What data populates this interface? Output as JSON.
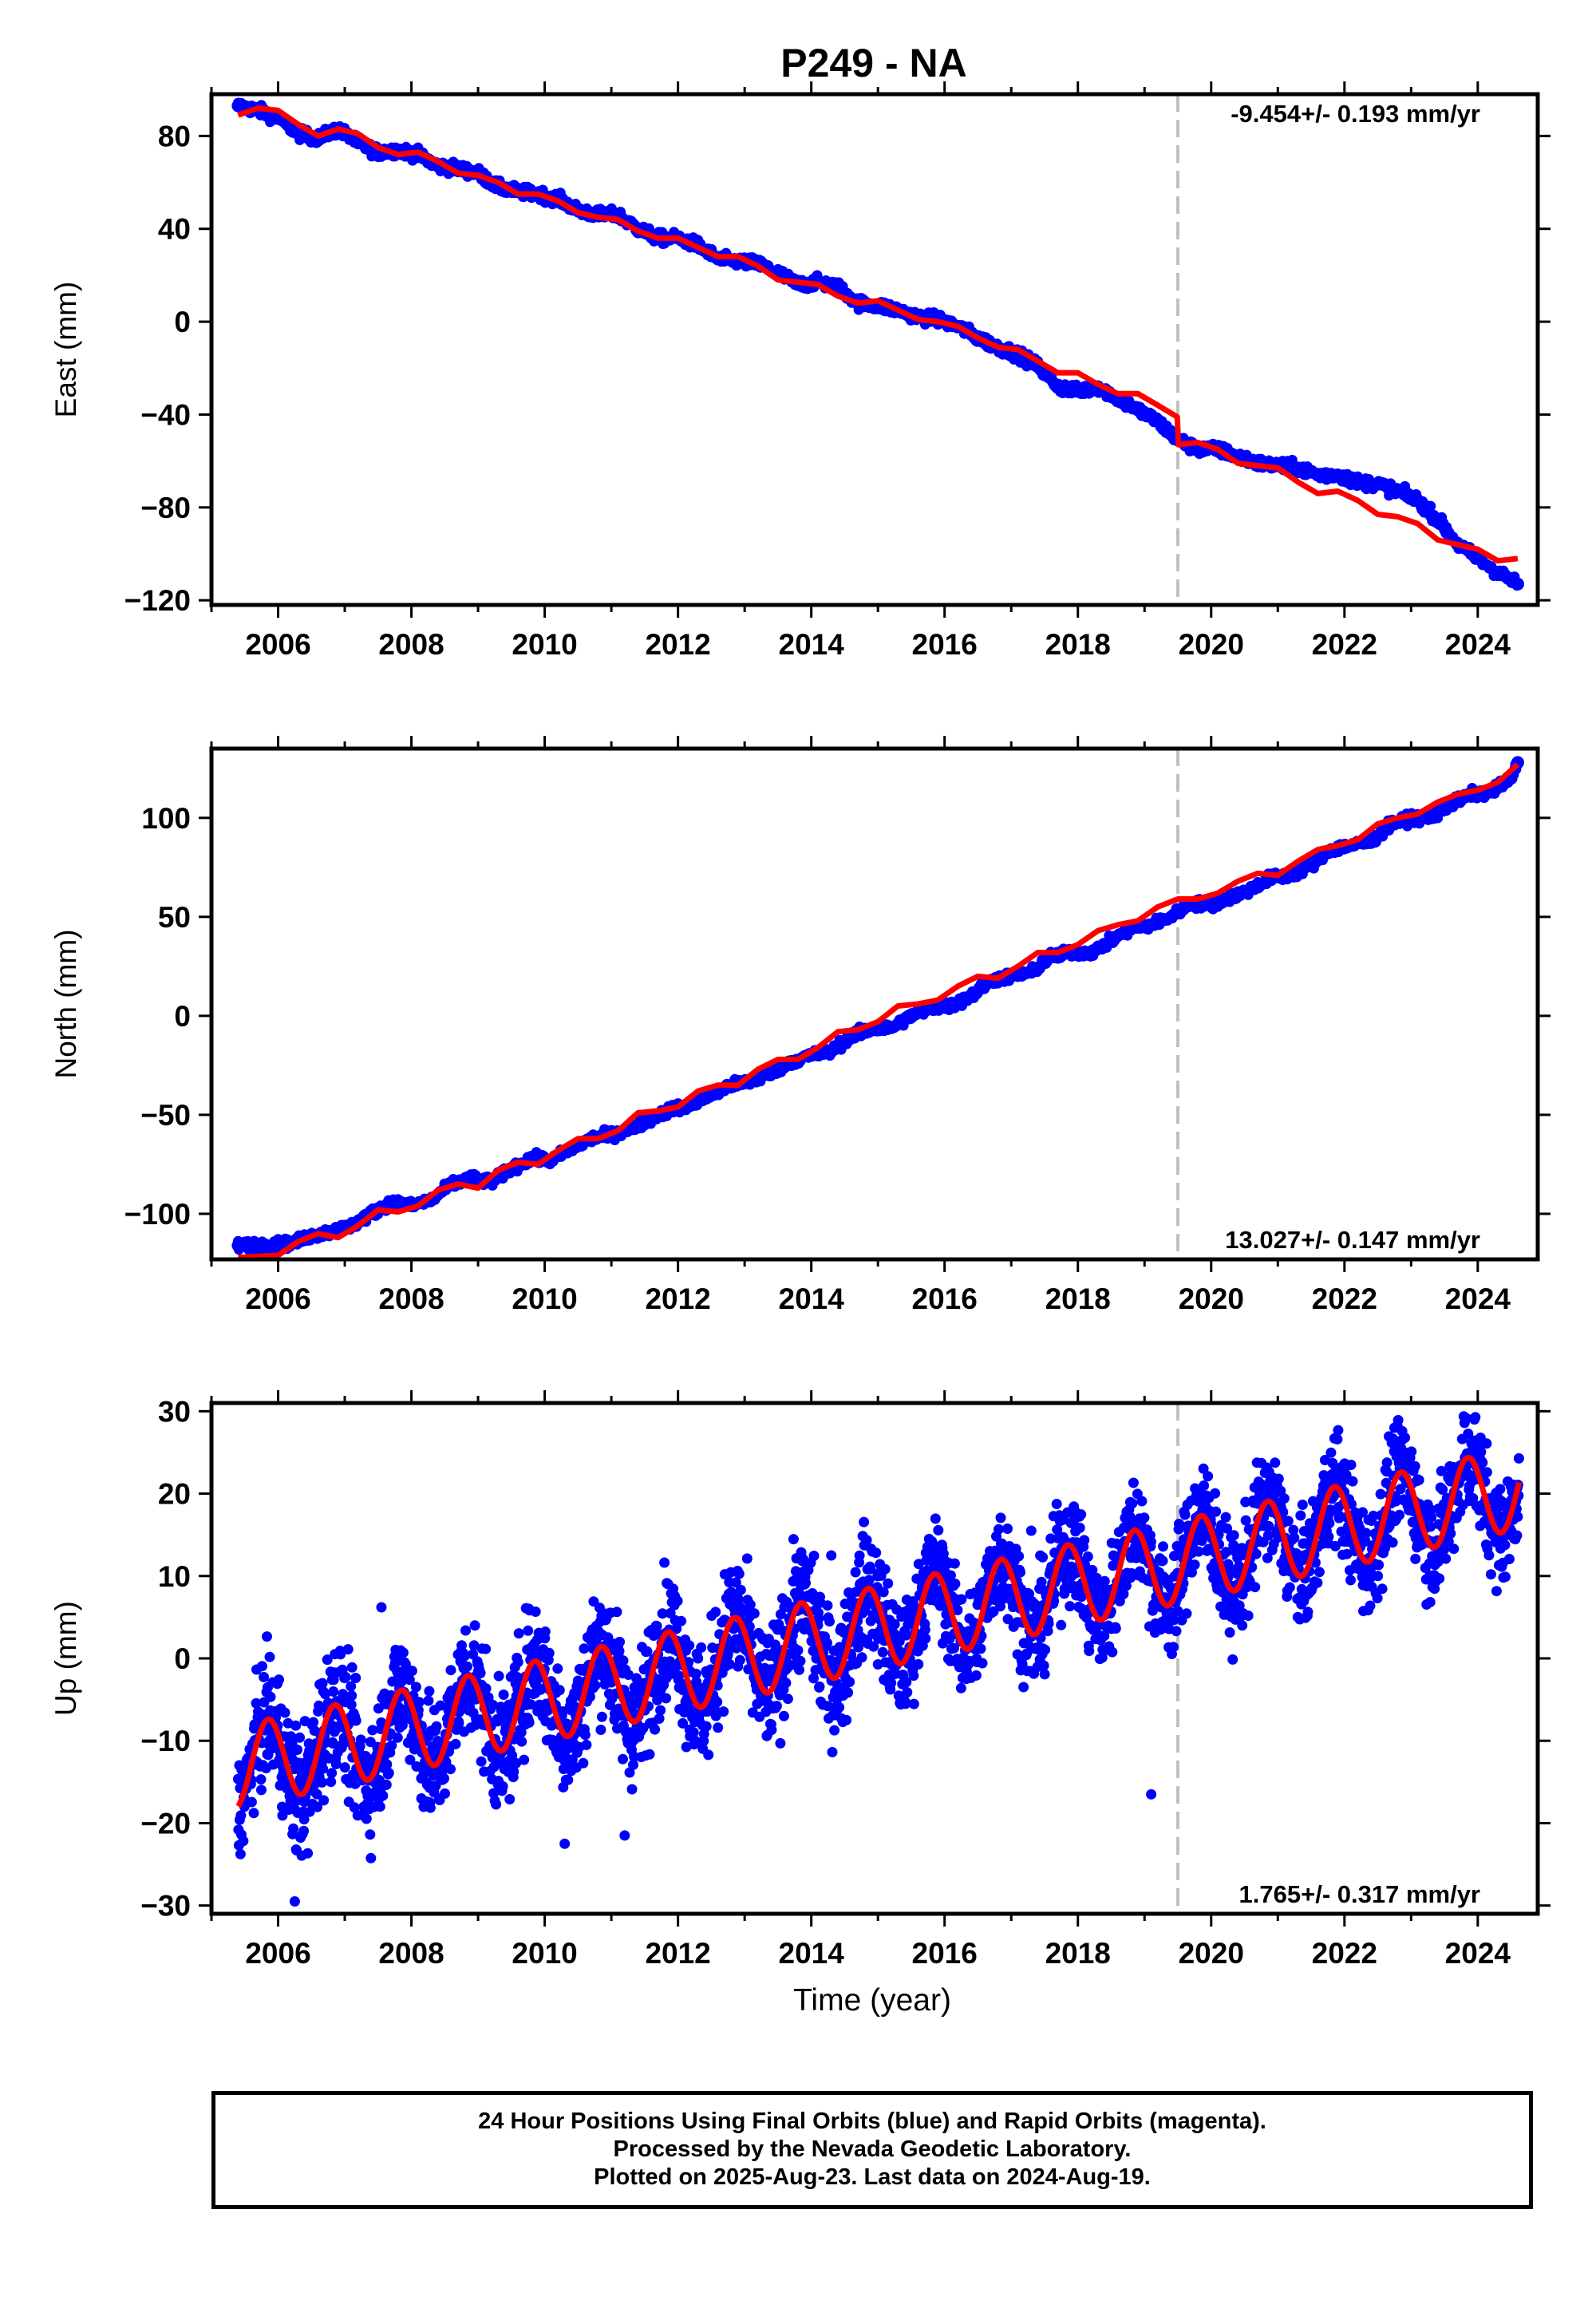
{
  "title": "P249 - NA",
  "xlabel": "Time (year)",
  "colors": {
    "data": "#0000ff",
    "model": "#ff0000",
    "event_line": "#c0c0c0",
    "axes": "#000000"
  },
  "footer": {
    "line1": "24 Hour Positions Using Final Orbits (blue) and Rapid Orbits (magenta).",
    "line2": "Processed by the Nevada Geodetic Laboratory.",
    "line3": "Plotted on 2025-Aug-23. Last data on 2024-Aug-19."
  },
  "chart_data": [
    {
      "type": "scatter",
      "component": "east",
      "ylabel": "East (mm)",
      "rate_label": "-9.454+/- 0.193 mm/yr",
      "legend_position": "top-right",
      "xlim": [
        2005.0,
        2024.9
      ],
      "ylim": [
        -122,
        98
      ],
      "xticks": [
        2006,
        2008,
        2010,
        2012,
        2014,
        2016,
        2018,
        2020,
        2022,
        2024
      ],
      "yticks": [
        80,
        40,
        0,
        -40,
        -80,
        -120
      ],
      "ytick_labels": [
        "80",
        "40",
        "0",
        "−40",
        "−80",
        "−120"
      ],
      "event_line_x": 2019.5,
      "observed": {
        "x": [
          2005.4,
          2005.7,
          2006.0,
          2006.3,
          2006.6,
          2006.9,
          2007.2,
          2007.5,
          2007.8,
          2008.1,
          2008.4,
          2008.7,
          2009.0,
          2009.3,
          2009.6,
          2009.9,
          2010.2,
          2010.5,
          2010.8,
          2011.1,
          2011.4,
          2011.7,
          2012.0,
          2012.3,
          2012.6,
          2012.9,
          2013.2,
          2013.5,
          2013.8,
          2014.1,
          2014.4,
          2014.7,
          2015.0,
          2015.3,
          2015.6,
          2015.9,
          2016.2,
          2016.5,
          2016.8,
          2017.1,
          2017.4,
          2017.7,
          2018.0,
          2018.3,
          2018.6,
          2018.9,
          2019.2,
          2019.5,
          2019.8,
          2020.1,
          2020.4,
          2020.7,
          2021.0,
          2021.3,
          2021.6,
          2021.9,
          2022.2,
          2022.5,
          2022.8,
          2023.1,
          2023.4,
          2023.7,
          2024.0,
          2024.3,
          2024.6
        ],
        "y": [
          93,
          91,
          88,
          81,
          79,
          83,
          77,
          73,
          74,
          72,
          67,
          66,
          64,
          58,
          56,
          55,
          53,
          48,
          46,
          46,
          40,
          36,
          36,
          33,
          27,
          26,
          25,
          21,
          16,
          17,
          15,
          8,
          7,
          5,
          2,
          1,
          -2,
          -7,
          -11,
          -14,
          -19,
          -28,
          -30,
          -28,
          -33,
          -38,
          -43,
          -51,
          -55,
          -55,
          -58,
          -61,
          -62,
          -63,
          -66,
          -66,
          -69,
          -70,
          -73,
          -77,
          -85,
          -96,
          -102,
          -108,
          -113
        ]
      },
      "model": {
        "x": [
          2005.4,
          2005.7,
          2006.0,
          2006.3,
          2006.6,
          2006.9,
          2007.2,
          2007.5,
          2007.8,
          2008.1,
          2008.4,
          2008.7,
          2009.0,
          2009.3,
          2009.6,
          2009.9,
          2010.2,
          2010.5,
          2010.8,
          2011.1,
          2011.4,
          2011.7,
          2012.0,
          2012.3,
          2012.6,
          2012.9,
          2013.2,
          2013.5,
          2013.8,
          2014.1,
          2014.4,
          2014.7,
          2015.0,
          2015.3,
          2015.6,
          2015.9,
          2016.2,
          2016.5,
          2016.8,
          2017.1,
          2017.4,
          2017.7,
          2018.0,
          2018.3,
          2018.6,
          2018.9,
          2019.2,
          2019.49,
          2019.51,
          2019.8,
          2020.1,
          2020.4,
          2020.7,
          2021.0,
          2021.3,
          2021.6,
          2021.9,
          2022.2,
          2022.5,
          2022.8,
          2023.1,
          2023.4,
          2023.7,
          2024.0,
          2024.3,
          2024.6
        ],
        "y": [
          89,
          92,
          91,
          85,
          80,
          83,
          81,
          75,
          72,
          73,
          69,
          64,
          63,
          60,
          55,
          55,
          52,
          47,
          45,
          44,
          39,
          36,
          36,
          32,
          28,
          28,
          24,
          18,
          17,
          16,
          11,
          8,
          9,
          5,
          1,
          0,
          -2,
          -7,
          -11,
          -12,
          -17,
          -22,
          -22,
          -27,
          -31,
          -31,
          -36,
          -41,
          -53,
          -52,
          -55,
          -61,
          -62,
          -63,
          -69,
          -74,
          -73,
          -77,
          -83,
          -84,
          -87,
          -94,
          -96,
          -98,
          -103,
          -102
        ]
      }
    },
    {
      "type": "scatter",
      "component": "north",
      "ylabel": "North (mm)",
      "rate_label": "13.027+/- 0.147 mm/yr",
      "legend_position": "bottom-right",
      "xlim": [
        2005.0,
        2024.9
      ],
      "ylim": [
        -123,
        135
      ],
      "xticks": [
        2006,
        2008,
        2010,
        2012,
        2014,
        2016,
        2018,
        2020,
        2022,
        2024
      ],
      "yticks": [
        100,
        50,
        0,
        -50,
        -100
      ],
      "ytick_labels": [
        "100",
        "50",
        "0",
        "−50",
        "−100"
      ],
      "event_line_x": 2019.5,
      "observed": {
        "x": [
          2005.4,
          2006.2,
          2006.5,
          2006.8,
          2007.1,
          2007.4,
          2007.7,
          2008.0,
          2008.3,
          2008.6,
          2008.9,
          2009.2,
          2009.5,
          2009.8,
          2010.1,
          2010.4,
          2010.7,
          2011.0,
          2011.3,
          2011.6,
          2011.9,
          2012.2,
          2012.5,
          2012.8,
          2013.1,
          2013.4,
          2013.7,
          2014.0,
          2014.3,
          2014.6,
          2014.9,
          2015.2,
          2015.5,
          2015.8,
          2016.1,
          2016.4,
          2016.7,
          2017.0,
          2017.3,
          2017.6,
          2017.9,
          2018.2,
          2018.5,
          2018.8,
          2019.1,
          2019.4,
          2019.7,
          2020.0,
          2020.3,
          2020.6,
          2020.9,
          2021.2,
          2021.5,
          2021.8,
          2022.1,
          2022.4,
          2022.7,
          2023.0,
          2023.3,
          2023.6,
          2023.9,
          2024.2,
          2024.5,
          2024.6
        ],
        "y": [
          -116,
          -115,
          -111,
          -109,
          -106,
          -100,
          -94,
          -96,
          -93,
          -85,
          -82,
          -84,
          -77,
          -72,
          -73,
          -67,
          -62,
          -60,
          -57,
          -52,
          -47,
          -45,
          -40,
          -35,
          -33,
          -29,
          -23,
          -20,
          -18,
          -10,
          -7,
          -6,
          0,
          4,
          5,
          10,
          18,
          20,
          22,
          30,
          32,
          32,
          38,
          44,
          46,
          50,
          57,
          56,
          60,
          64,
          70,
          71,
          76,
          84,
          86,
          88,
          97,
          100,
          100,
          107,
          112,
          113,
          120,
          128
        ]
      },
      "model": {
        "x": [
          2005.4,
          2006.0,
          2006.3,
          2006.6,
          2006.9,
          2007.2,
          2007.5,
          2007.8,
          2008.1,
          2008.4,
          2008.7,
          2009.0,
          2009.3,
          2009.6,
          2009.9,
          2010.2,
          2010.5,
          2010.8,
          2011.1,
          2011.4,
          2011.7,
          2012.0,
          2012.3,
          2012.6,
          2012.9,
          2013.2,
          2013.5,
          2013.8,
          2014.1,
          2014.4,
          2014.7,
          2015.0,
          2015.3,
          2015.6,
          2015.9,
          2016.2,
          2016.5,
          2016.8,
          2017.1,
          2017.4,
          2017.7,
          2018.0,
          2018.3,
          2018.6,
          2018.9,
          2019.2,
          2019.5,
          2019.8,
          2020.1,
          2020.4,
          2020.7,
          2021.0,
          2021.3,
          2021.6,
          2021.9,
          2022.2,
          2022.5,
          2022.8,
          2023.1,
          2023.4,
          2023.7,
          2024.0,
          2024.3,
          2024.6
        ],
        "y": [
          -122,
          -121,
          -114,
          -110,
          -112,
          -106,
          -98,
          -99,
          -96,
          -88,
          -85,
          -87,
          -78,
          -74,
          -75,
          -68,
          -62,
          -62,
          -58,
          -49,
          -48,
          -46,
          -38,
          -35,
          -35,
          -27,
          -22,
          -22,
          -16,
          -8,
          -7,
          -3,
          5,
          6,
          8,
          15,
          20,
          19,
          25,
          32,
          32,
          36,
          43,
          46,
          48,
          55,
          59,
          59,
          62,
          68,
          72,
          71,
          78,
          84,
          86,
          89,
          97,
          100,
          102,
          108,
          112,
          114,
          118,
          127
        ]
      }
    },
    {
      "type": "scatter",
      "component": "up",
      "ylabel": "Up (mm)",
      "rate_label": "1.765+/- 0.317 mm/yr",
      "legend_position": "bottom-right",
      "xlim": [
        2005.0,
        2024.9
      ],
      "ylim": [
        -31,
        31
      ],
      "xticks": [
        2006,
        2008,
        2010,
        2012,
        2014,
        2016,
        2018,
        2020,
        2022,
        2024
      ],
      "yticks": [
        30,
        20,
        10,
        0,
        -10,
        -20,
        -30
      ],
      "ytick_labels": [
        "30",
        "20",
        "10",
        "0",
        "−10",
        "−20",
        "−30"
      ],
      "event_line_x": 2019.5,
      "model_params": {
        "t0": 2005.4,
        "intercept": -13.2,
        "rate": 1.765,
        "amplitude": 5.0,
        "phase_year": 0.2
      },
      "observed_envelope": {
        "x": [
          2005.4,
          2006.0,
          2006.5,
          2007.0,
          2007.5,
          2008.0,
          2008.5,
          2009.0,
          2009.5,
          2010.0,
          2010.5,
          2011.0,
          2011.5,
          2012.0,
          2012.5,
          2013.0,
          2013.5,
          2014.0,
          2014.5,
          2015.0,
          2015.5,
          2016.0,
          2016.5,
          2017.0,
          2017.5,
          2018.0,
          2018.5,
          2019.0,
          2019.5,
          2020.0,
          2020.5,
          2021.0,
          2021.5,
          2022.0,
          2022.5,
          2023.0,
          2023.5,
          2024.0,
          2024.5
        ],
        "spread": [
          6,
          8,
          9,
          8,
          8,
          8,
          8,
          8,
          8,
          8,
          8,
          8,
          8,
          8,
          8,
          8,
          8,
          8,
          8,
          8,
          7,
          7,
          7,
          7,
          7,
          7,
          7,
          7,
          7,
          7,
          7,
          7,
          7,
          7,
          7,
          7,
          7,
          7,
          7
        ]
      },
      "outliers": {
        "x": [
          2006.25,
          2007.55,
          2008.15,
          2010.3,
          2011.2,
          2014.3,
          2017.3,
          2019.1,
          2022.75,
          2023.95
        ],
        "y": [
          -29.5,
          6.2,
          -17,
          -22.5,
          -21.5,
          12.5,
          15.5,
          -16.5,
          28,
          29
        ]
      }
    }
  ]
}
